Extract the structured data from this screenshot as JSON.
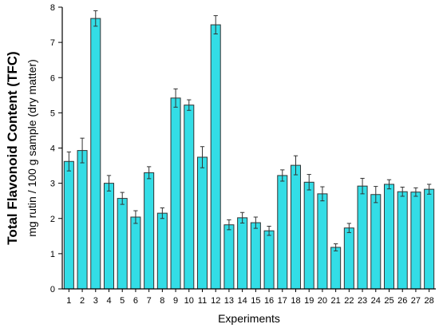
{
  "chart_data": {
    "type": "bar",
    "title": "",
    "xlabel": "Experiments",
    "ylabel": "Total Flavonoid Content (TFC)",
    "ylabel_sub": "mg rutin / 100 g sample (dry matter)",
    "ylim": [
      0,
      8
    ],
    "yticks": [
      "0",
      "1",
      "2",
      "3",
      "4",
      "5",
      "6",
      "7",
      "8"
    ],
    "grid": false,
    "legend": "none",
    "bar_color": "#33dde6",
    "bar_edge_color": "#333333",
    "categories": [
      "1",
      "2",
      "3",
      "4",
      "5",
      "6",
      "7",
      "8",
      "9",
      "10",
      "11",
      "12",
      "13",
      "14",
      "15",
      "16",
      "17",
      "18",
      "19",
      "20",
      "21",
      "22",
      "23",
      "24",
      "25",
      "26",
      "27",
      "28"
    ],
    "series": [
      {
        "values": [
          3.62,
          3.93,
          7.68,
          3.0,
          2.57,
          2.04,
          3.3,
          2.15,
          5.42,
          5.22,
          3.74,
          7.5,
          1.82,
          2.02,
          1.88,
          1.65,
          3.22,
          3.51,
          3.03,
          2.7,
          1.18,
          1.73,
          2.92,
          2.68,
          2.97,
          2.76,
          2.75,
          2.83
        ],
        "errors": [
          0.27,
          0.35,
          0.22,
          0.22,
          0.17,
          0.18,
          0.17,
          0.15,
          0.26,
          0.15,
          0.3,
          0.26,
          0.14,
          0.15,
          0.16,
          0.13,
          0.16,
          0.27,
          0.22,
          0.2,
          0.1,
          0.13,
          0.22,
          0.23,
          0.13,
          0.13,
          0.12,
          0.14
        ]
      }
    ]
  }
}
